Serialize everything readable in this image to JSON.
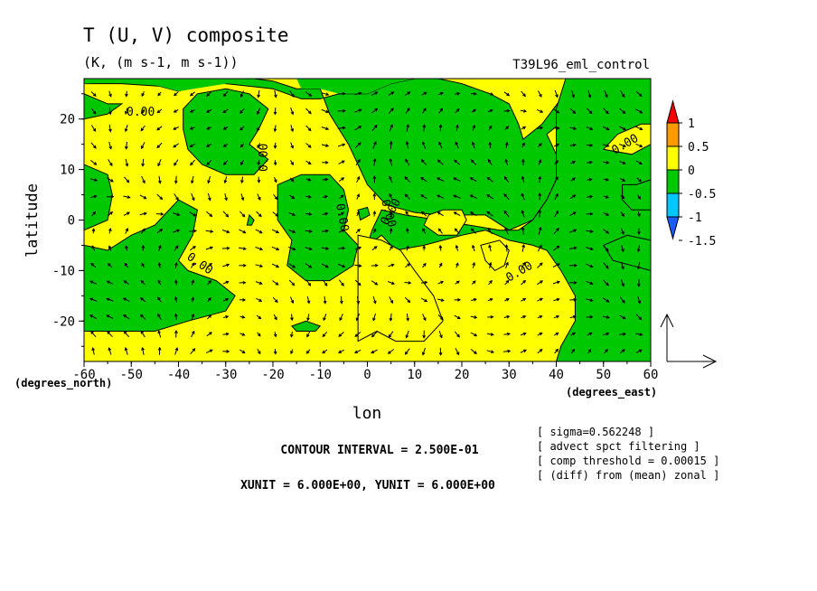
{
  "chart_data": {
    "type": "contour-vector",
    "title": "T (U, V) composite",
    "subtitle": "(K, (m s-1, m s-1))",
    "run_label": "T39L96_eml_control",
    "xlabel": "lon",
    "ylabel": "latitude",
    "x_unit_label": "(degrees_east)",
    "y_unit_label": "(degrees_north)",
    "xlim": [
      -60,
      60
    ],
    "ylim": [
      -28,
      28
    ],
    "x_ticks": [
      -60,
      -50,
      -40,
      -30,
      -20,
      -10,
      0,
      10,
      20,
      30,
      40,
      50,
      60
    ],
    "y_ticks": [
      -20,
      -10,
      0,
      10,
      20
    ],
    "contour_labels": [
      "0.00",
      "0.00",
      "0.00",
      "0.00",
      "0.00",
      "0.00",
      "0.00",
      "0.00"
    ],
    "colorbar": {
      "levels": [
        -1.5,
        -1,
        -0.5,
        0,
        0.5,
        1
      ],
      "tick_labels": [
        "1",
        "0.5",
        "0",
        "-0.5",
        "-1",
        "-1.5"
      ],
      "colors": [
        "#1a5cff",
        "#00c8ff",
        "#00c800",
        "#ffff00",
        "#ff9900",
        "#ff0000"
      ]
    },
    "contour_interval": "CONTOUR INTERVAL = 2.500E-01",
    "vector_units": "XUNIT = 6.000E+00, YUNIT = 6.000E+00",
    "info": [
      "[ sigma=0.562248 ]",
      "[ advect spct filtering ]",
      "[ comp threshold = 0.00015 ]",
      "[ (diff) from (mean) zonal ]"
    ],
    "negative_regions": [
      [
        [
          -60,
          27
        ],
        [
          -52,
          27
        ],
        [
          -44,
          26.5
        ],
        [
          -40,
          25.5
        ],
        [
          -35,
          27
        ],
        [
          -30,
          28
        ],
        [
          -27,
          28
        ],
        [
          -24,
          28
        ],
        [
          -20,
          27.5
        ],
        [
          -15,
          26
        ],
        [
          -10,
          26
        ],
        [
          -8,
          21
        ],
        [
          -4,
          15
        ],
        [
          -2,
          11
        ],
        [
          0,
          7
        ],
        [
          4,
          3
        ],
        [
          10,
          1.5
        ],
        [
          15,
          1
        ],
        [
          20,
          1
        ],
        [
          25,
          1
        ],
        [
          30,
          -2
        ],
        [
          35,
          0
        ],
        [
          38,
          4
        ],
        [
          40,
          8
        ],
        [
          40,
          13
        ],
        [
          38,
          17
        ],
        [
          42,
          20
        ],
        [
          45,
          22
        ],
        [
          48,
          21
        ],
        [
          52,
          20
        ],
        [
          55,
          22
        ],
        [
          58,
          24
        ],
        [
          60,
          25
        ],
        [
          60,
          28
        ],
        [
          42,
          28
        ],
        [
          41,
          24
        ],
        [
          37,
          19
        ],
        [
          33,
          16
        ],
        [
          32,
          19
        ],
        [
          30,
          23
        ],
        [
          26,
          25
        ],
        [
          20,
          27
        ],
        [
          15,
          28
        ],
        [
          10,
          28
        ],
        [
          5,
          27
        ],
        [
          0,
          25
        ],
        [
          -6,
          25
        ],
        [
          -10,
          24
        ],
        [
          -14,
          24
        ],
        [
          -20,
          26
        ],
        [
          -30,
          27
        ],
        [
          -40,
          27.5
        ],
        [
          -50,
          28
        ],
        [
          -60,
          28
        ]
      ],
      [
        [
          -60,
          25
        ],
        [
          -55,
          23
        ],
        [
          -52,
          23
        ],
        [
          -55,
          21
        ],
        [
          -60,
          20
        ]
      ],
      [
        [
          -60,
          -2
        ],
        [
          -55,
          0
        ],
        [
          -54,
          5
        ],
        [
          -55,
          9
        ],
        [
          -60,
          11
        ]
      ],
      [
        [
          -60,
          -5
        ],
        [
          -55,
          -6
        ],
        [
          -50,
          -3
        ],
        [
          -45,
          -1
        ],
        [
          -40,
          4
        ],
        [
          -36,
          2
        ],
        [
          -37,
          -3
        ],
        [
          -40,
          -8
        ],
        [
          -38,
          -10
        ],
        [
          -32,
          -12
        ],
        [
          -28,
          -15
        ],
        [
          -30,
          -18
        ],
        [
          -38,
          -20
        ],
        [
          -45,
          -22
        ],
        [
          -55,
          -22
        ],
        [
          -60,
          -22
        ]
      ],
      [
        [
          -39,
          22
        ],
        [
          -36,
          25
        ],
        [
          -30,
          26
        ],
        [
          -25,
          25
        ],
        [
          -21,
          22
        ],
        [
          -23,
          18
        ],
        [
          -25,
          15
        ],
        [
          -21,
          12
        ],
        [
          -24,
          9
        ],
        [
          -30,
          9
        ],
        [
          -35,
          11
        ],
        [
          -38,
          14
        ],
        [
          -39,
          18
        ]
      ],
      [
        [
          -19,
          7
        ],
        [
          -14,
          9
        ],
        [
          -8,
          9
        ],
        [
          -5,
          6
        ],
        [
          -4,
          2
        ],
        [
          -5,
          -2
        ],
        [
          -2,
          -5
        ],
        [
          -3,
          -9
        ],
        [
          -8,
          -12
        ],
        [
          -13,
          -12
        ],
        [
          -17,
          -9
        ],
        [
          -16,
          -4
        ],
        [
          -19,
          0
        ],
        [
          -19,
          4
        ]
      ],
      [
        [
          -13,
          -20
        ],
        [
          -10,
          -21
        ],
        [
          -11,
          -22
        ],
        [
          -15,
          -22
        ],
        [
          -16,
          -21
        ]
      ],
      [
        [
          -25,
          1
        ],
        [
          -24,
          0
        ],
        [
          -24.5,
          -1
        ],
        [
          -25.5,
          -1
        ]
      ],
      [
        [
          -2,
          2
        ],
        [
          0,
          2.5
        ],
        [
          0.5,
          1
        ],
        [
          -1.5,
          0
        ]
      ],
      [
        [
          3,
          2
        ],
        [
          8,
          1
        ],
        [
          15,
          0
        ],
        [
          28,
          -2
        ],
        [
          32,
          -2
        ],
        [
          35,
          0
        ],
        [
          38,
          4
        ],
        [
          40,
          8
        ],
        [
          40,
          14
        ],
        [
          40,
          22
        ],
        [
          42,
          28
        ],
        [
          60,
          28
        ],
        [
          60,
          -28
        ],
        [
          40,
          -28
        ],
        [
          41,
          -25
        ],
        [
          44,
          -20
        ],
        [
          44,
          -15
        ],
        [
          41,
          -10
        ],
        [
          38,
          -6
        ],
        [
          35,
          -5
        ],
        [
          30,
          -4
        ],
        [
          25,
          -2
        ],
        [
          20,
          -3
        ],
        [
          12,
          -5
        ],
        [
          6,
          -6
        ],
        [
          3,
          -3
        ],
        [
          0,
          -5
        ],
        [
          1,
          -2
        ],
        [
          2,
          0
        ]
      ],
      [
        [
          50,
          -5
        ],
        [
          55,
          -3
        ],
        [
          60,
          -4
        ],
        [
          60,
          -10
        ],
        [
          56,
          -9
        ],
        [
          52,
          -8
        ]
      ],
      [
        [
          54,
          7
        ],
        [
          57,
          7
        ],
        [
          60,
          8
        ],
        [
          60,
          2
        ],
        [
          56,
          2
        ],
        [
          54,
          4
        ]
      ]
    ],
    "positive_islands": [
      [
        [
          13,
          1
        ],
        [
          16,
          2
        ],
        [
          20,
          2
        ],
        [
          21,
          0
        ],
        [
          19,
          -3
        ],
        [
          15,
          -3
        ],
        [
          12,
          -1
        ]
      ],
      [
        [
          24,
          -5
        ],
        [
          28,
          -4
        ],
        [
          30,
          -6
        ],
        [
          29,
          -9
        ],
        [
          27,
          -10
        ],
        [
          25,
          -8
        ]
      ],
      [
        [
          50,
          14
        ],
        [
          53,
          17
        ],
        [
          58,
          19
        ],
        [
          60,
          19
        ],
        [
          60,
          15
        ],
        [
          56,
          13
        ]
      ],
      [
        [
          -2,
          -3
        ],
        [
          3,
          -4
        ],
        [
          7,
          -6
        ],
        [
          10,
          -10
        ],
        [
          14,
          -15
        ],
        [
          16,
          -20
        ],
        [
          12,
          -24
        ],
        [
          6,
          -24
        ],
        [
          2,
          -22
        ],
        [
          -2,
          -24
        ],
        [
          -2,
          -18
        ],
        [
          -2,
          -10
        ]
      ]
    ],
    "green_upper_overlay": [
      [
        [
          -60,
          27
        ],
        [
          -50,
          27.5
        ],
        [
          -44,
          26.5
        ],
        [
          -40,
          25.5
        ],
        [
          -30,
          27
        ],
        [
          -24,
          28
        ],
        [
          -60,
          28
        ]
      ],
      [
        [
          -10,
          26
        ],
        [
          -6,
          25
        ],
        [
          0,
          25
        ],
        [
          5,
          27
        ],
        [
          10,
          28
        ],
        [
          -15,
          28
        ],
        [
          -14,
          26
        ]
      ]
    ]
  }
}
